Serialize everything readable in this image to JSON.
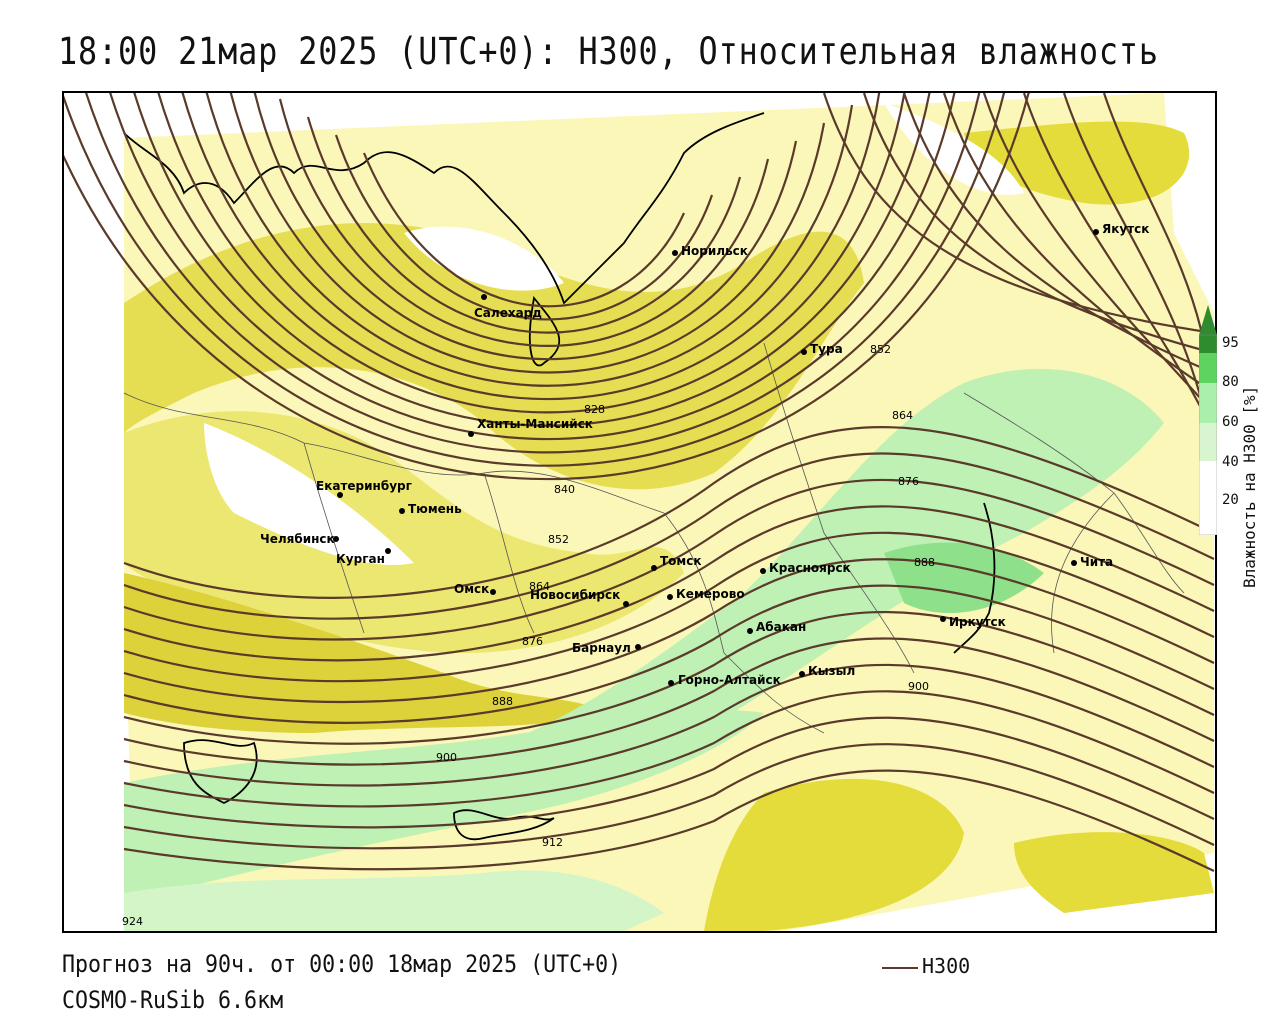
{
  "title": "18:00 21мар 2025 (UTC+0): H300, Относительная влажность",
  "footer": {
    "forecast": "Прогноз на 90ч. от 00:00 18мар 2025 (UTC+0)",
    "model": "COSMO-RuSib 6.6км"
  },
  "legend": {
    "line_label": "H300",
    "line_color": "#5a3a2a"
  },
  "colorbar": {
    "axis_label": "Влажность на H300 [%]",
    "ticks": [
      "95",
      "80",
      "60",
      "40",
      "20"
    ],
    "colors": [
      "#2e8b2e",
      "#5fd35f",
      "#aaf0aa",
      "#d8f5d0",
      "#ffffff",
      "#ffffff",
      "#fff7b3",
      "#f5f0a0",
      "#e3dc3a",
      "#c8b82a"
    ]
  },
  "cities": [
    "Якутск",
    "Норильск",
    "Салехард",
    "Тура",
    "Ханты-Мансийск",
    "Екатеринбург",
    "Тюмень",
    "Челябинск",
    "Курган",
    "Омск",
    "Новосибирск",
    "Томск",
    "Кемерово",
    "Красноярск",
    "Абакан",
    "Барнаул",
    "Горно-Алтайск",
    "Кызыл",
    "Иркутск",
    "Чита"
  ],
  "isoline_labels": [
    "828",
    "840",
    "852",
    "864",
    "876",
    "888",
    "900",
    "912",
    "924",
    "852",
    "864",
    "876",
    "888",
    "900"
  ]
}
